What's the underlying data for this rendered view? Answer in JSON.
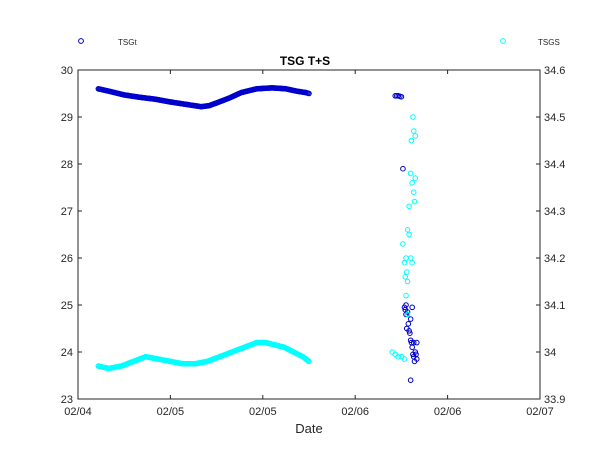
{
  "chart_data": {
    "type": "scatter",
    "title": "TSG T+S",
    "xlabel": "Date",
    "ylabel_left": "",
    "ylabel_right": "",
    "x_tick_labels": [
      "02/04",
      "02/05",
      "02/05",
      "02/06",
      "02/06",
      "02/07"
    ],
    "xlim_days": [
      0,
      3
    ],
    "ylim_left": [
      23,
      30
    ],
    "ylim_right": [
      33.9,
      34.6
    ],
    "y_ticks_left": [
      "23",
      "24",
      "25",
      "26",
      "27",
      "28",
      "29",
      "30"
    ],
    "y_ticks_right": [
      "33.9",
      "34",
      "34.1",
      "34.2",
      "34.3",
      "34.4",
      "34.5",
      "34.6"
    ],
    "grid": false,
    "legend_position": "above plot, left and right",
    "series": [
      {
        "name": "TSGt",
        "axis": "left",
        "color": "#0000cd",
        "marker": "circle",
        "segments": [
          {
            "x_start": 0.132,
            "x_end": 0.985,
            "points": [
              [
                0.132,
                29.6
              ],
              [
                0.2,
                29.55
              ],
              [
                0.3,
                29.47
              ],
              [
                0.4,
                29.42
              ],
              [
                0.5,
                29.38
              ],
              [
                0.6,
                29.32
              ],
              [
                0.7,
                29.27
              ],
              [
                0.8,
                29.22
              ],
              [
                0.85,
                29.24
              ],
              [
                0.9,
                29.3
              ],
              [
                0.98,
                29.4
              ],
              [
                1.06,
                29.52
              ],
              [
                1.16,
                29.6
              ],
              [
                1.26,
                29.62
              ],
              [
                1.35,
                29.6
              ],
              [
                1.42,
                29.55
              ],
              [
                1.48,
                29.52
              ],
              [
                1.5,
                29.5
              ]
            ]
          },
          {
            "x_start": 2.06,
            "x_end": 2.16,
            "points": [
              [
                2.06,
                29.45
              ],
              [
                2.07,
                29.45
              ],
              [
                2.08,
                29.45
              ],
              [
                2.09,
                29.44
              ],
              [
                2.1,
                29.43
              ],
              [
                2.11,
                27.9
              ],
              [
                2.12,
                24.95
              ],
              [
                2.125,
                24.9
              ],
              [
                2.13,
                24.8
              ],
              [
                2.13,
                25.0
              ],
              [
                2.135,
                24.5
              ],
              [
                2.14,
                24.85
              ],
              [
                2.145,
                24.6
              ],
              [
                2.15,
                24.45
              ],
              [
                2.155,
                24.4
              ],
              [
                2.16,
                24.7
              ],
              [
                2.16,
                24.25
              ],
              [
                2.165,
                24.2
              ],
              [
                2.17,
                24.1
              ],
              [
                2.17,
                24.95
              ],
              [
                2.175,
                23.95
              ],
              [
                2.18,
                23.9
              ],
              [
                2.18,
                24.2
              ],
              [
                2.185,
                23.8
              ],
              [
                2.19,
                24.0
              ],
              [
                2.16,
                23.4
              ],
              [
                2.195,
                23.95
              ],
              [
                2.2,
                24.2
              ],
              [
                2.2,
                23.85
              ]
            ]
          }
        ]
      },
      {
        "name": "TSGS",
        "axis": "right",
        "color": "#00ffff",
        "marker": "circle",
        "segments": [
          {
            "points": [
              [
                0.132,
                33.97
              ],
              [
                0.2,
                33.965
              ],
              [
                0.28,
                33.97
              ],
              [
                0.36,
                33.98
              ],
              [
                0.44,
                33.99
              ],
              [
                0.52,
                33.985
              ],
              [
                0.6,
                33.98
              ],
              [
                0.68,
                33.975
              ],
              [
                0.76,
                33.975
              ],
              [
                0.84,
                33.98
              ],
              [
                0.92,
                33.99
              ],
              [
                1.0,
                34.0
              ],
              [
                1.08,
                34.01
              ],
              [
                1.16,
                34.02
              ],
              [
                1.22,
                34.02
              ],
              [
                1.28,
                34.015
              ],
              [
                1.34,
                34.01
              ],
              [
                1.4,
                34.0
              ],
              [
                1.46,
                33.99
              ],
              [
                1.5,
                33.98
              ]
            ]
          },
          {
            "points": [
              [
                2.04,
                34.0
              ],
              [
                2.06,
                33.995
              ],
              [
                2.08,
                33.99
              ],
              [
                2.1,
                33.99
              ],
              [
                2.12,
                33.985
              ],
              [
                2.11,
                34.23
              ],
              [
                2.12,
                34.19
              ],
              [
                2.125,
                34.16
              ],
              [
                2.13,
                34.2
              ],
              [
                2.135,
                34.17
              ],
              [
                2.14,
                34.15
              ],
              [
                2.14,
                34.26
              ],
              [
                2.15,
                34.25
              ],
              [
                2.15,
                34.31
              ],
              [
                2.16,
                34.38
              ],
              [
                2.165,
                34.45
              ],
              [
                2.17,
                34.36
              ],
              [
                2.175,
                34.5
              ],
              [
                2.18,
                34.47
              ],
              [
                2.18,
                34.34
              ],
              [
                2.185,
                34.32
              ],
              [
                2.19,
                34.37
              ],
              [
                2.19,
                34.46
              ],
              [
                2.16,
                34.2
              ],
              [
                2.17,
                34.19
              ],
              [
                2.13,
                34.12
              ],
              [
                2.14,
                34.08
              ]
            ]
          }
        ]
      }
    ]
  }
}
